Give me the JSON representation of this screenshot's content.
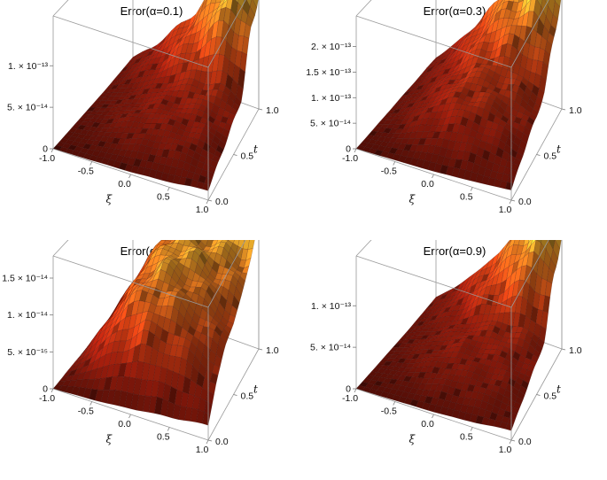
{
  "chart_data": [
    {
      "type": "surface",
      "title": "Error(α=0.1)",
      "xlabel": "ξ",
      "ylabel": "t",
      "x_ticks": [
        "-1.0",
        "-0.5",
        "0.0",
        "0.5",
        "1.0"
      ],
      "y_ticks": [
        "0.0",
        "0.5",
        "1.0"
      ],
      "z_ticks": [
        "0",
        "5. × 10⁻¹⁴",
        "1. × 10⁻¹³"
      ],
      "xlim": [
        -1.0,
        1.0
      ],
      "ylim": [
        0.0,
        1.0
      ],
      "zlim": [
        0,
        1.6e-13
      ],
      "z_grid": [
        [
          0.0,
          1e-15,
          2e-15,
          3e-15,
          5e-15,
          8e-15,
          1.2e-14
        ],
        [
          1e-15,
          5e-15,
          1.2e-14,
          2e-14,
          2.6e-14,
          2.8e-14,
          2.2e-14
        ],
        [
          2e-15,
          1e-14,
          2.2e-14,
          3.2e-14,
          3.6e-14,
          3.8e-14,
          3e-14
        ],
        [
          3e-15,
          1.2e-14,
          2.4e-14,
          3.6e-14,
          4.2e-14,
          4.6e-14,
          4e-14
        ],
        [
          4e-15,
          1.6e-14,
          2.8e-14,
          4.4e-14,
          5.4e-14,
          6e-14,
          5e-14
        ],
        [
          6e-15,
          2.4e-14,
          4.4e-14,
          7.2e-14,
          1e-13,
          1.3e-13,
          1.1e-13
        ],
        [
          8e-15,
          3e-14,
          6e-14,
          9e-14,
          1.3e-13,
          1.6e-13,
          1.4e-13
        ]
      ]
    },
    {
      "type": "surface",
      "title": "Error(α=0.3)",
      "xlabel": "ξ",
      "ylabel": "t",
      "x_ticks": [
        "-1.0",
        "-0.5",
        "0.0",
        "0.5",
        "1.0"
      ],
      "y_ticks": [
        "0.0",
        "0.5",
        "1.0"
      ],
      "z_ticks": [
        "0",
        "5. × 10⁻¹⁴",
        "1. × 10⁻¹³",
        "1.5 × 10⁻¹³",
        "2. × 10⁻¹³"
      ],
      "xlim": [
        -1.0,
        1.0
      ],
      "ylim": [
        0.0,
        1.0
      ],
      "zlim": [
        0,
        2.6e-13
      ],
      "z_grid": [
        [
          0.0,
          2e-15,
          4e-15,
          6e-15,
          1e-14,
          1.4e-14,
          2e-14
        ],
        [
          2e-15,
          1.2e-14,
          3e-14,
          4.6e-14,
          5.4e-14,
          5e-14,
          4e-14
        ],
        [
          4e-15,
          2.4e-14,
          5.6e-14,
          8e-14,
          8.6e-14,
          7.6e-14,
          6e-14
        ],
        [
          6e-15,
          3e-14,
          6.4e-14,
          9.4e-14,
          9.8e-14,
          9e-14,
          7.4e-14
        ],
        [
          8e-15,
          3.6e-14,
          7e-14,
          1.06e-13,
          1.16e-13,
          1.12e-13,
          9.6e-14
        ],
        [
          1e-14,
          4.6e-14,
          9e-14,
          1.4e-13,
          1.76e-13,
          1.94e-13,
          1.7e-13
        ],
        [
          1.2e-14,
          5.6e-14,
          1.1e-13,
          1.7e-13,
          2.2e-13,
          2.56e-13,
          2.2e-13
        ]
      ]
    },
    {
      "type": "surface",
      "title": "Error(α=0.7)",
      "xlabel": "ξ",
      "ylabel": "t",
      "x_ticks": [
        "-1.0",
        "-0.5",
        "0.0",
        "0.5",
        "1.0"
      ],
      "y_ticks": [
        "0.0",
        "0.5",
        "1.0"
      ],
      "z_ticks": [
        "0",
        "5. × 10⁻¹⁵",
        "1. × 10⁻¹⁴",
        "1.5 × 10⁻¹⁴"
      ],
      "xlim": [
        -1.0,
        1.0
      ],
      "ylim": [
        0.0,
        1.0
      ],
      "zlim": [
        0,
        1.8e-14
      ],
      "z_grid": [
        [
          0.0,
          2e-16,
          4e-16,
          8e-16,
          1.2e-15,
          1.6e-15,
          2e-15
        ],
        [
          3e-16,
          3e-15,
          6e-15,
          8e-15,
          8.4e-15,
          7.6e-15,
          6e-15
        ],
        [
          6e-16,
          5.6e-15,
          1.04e-14,
          1.26e-14,
          1.2e-14,
          1.04e-14,
          8.6e-15
        ],
        [
          8e-16,
          6.4e-15,
          1.16e-14,
          1.4e-14,
          1.34e-14,
          1.18e-14,
          9.6e-15
        ],
        [
          1e-15,
          7e-15,
          1.24e-14,
          1.48e-14,
          1.46e-14,
          1.32e-14,
          1.16e-14
        ],
        [
          1.4e-15,
          7.6e-15,
          1.28e-14,
          1.46e-14,
          1.44e-14,
          1.42e-14,
          1.4e-14
        ],
        [
          1.8e-15,
          8e-15,
          1.3e-14,
          1.44e-14,
          1.46e-14,
          1.56e-14,
          1.74e-14
        ]
      ]
    },
    {
      "type": "surface",
      "title": "Error(α=0.9)",
      "xlabel": "ξ",
      "ylabel": "t",
      "x_ticks": [
        "-1.0",
        "-0.5",
        "0.0",
        "0.5",
        "1.0"
      ],
      "y_ticks": [
        "0.0",
        "0.5",
        "1.0"
      ],
      "z_ticks": [
        "0",
        "5. × 10⁻¹⁴",
        "1. × 10⁻¹³"
      ],
      "xlim": [
        -1.0,
        1.0
      ],
      "ylim": [
        0.0,
        1.0
      ],
      "zlim": [
        0,
        1.6e-13
      ],
      "z_grid": [
        [
          0.0,
          1e-15,
          2e-15,
          3e-15,
          5e-15,
          8e-15,
          1.2e-14
        ],
        [
          1e-15,
          6e-15,
          1.2e-14,
          2e-14,
          2.4e-14,
          2.6e-14,
          2e-14
        ],
        [
          2e-15,
          1e-14,
          2.2e-14,
          3.2e-14,
          3.4e-14,
          3.6e-14,
          3e-14
        ],
        [
          3e-15,
          1.4e-14,
          2.6e-14,
          3.8e-14,
          4.2e-14,
          4.4e-14,
          3.8e-14
        ],
        [
          4e-15,
          1.6e-14,
          2.8e-14,
          4.2e-14,
          5.2e-14,
          5.6e-14,
          4.8e-14
        ],
        [
          6e-15,
          2.2e-14,
          4.2e-14,
          7e-14,
          9.6e-14,
          1.24e-13,
          1.06e-13
        ],
        [
          8e-15,
          3e-14,
          5.8e-14,
          8.8e-14,
          1.28e-13,
          1.56e-13,
          1.36e-13
        ]
      ]
    }
  ]
}
